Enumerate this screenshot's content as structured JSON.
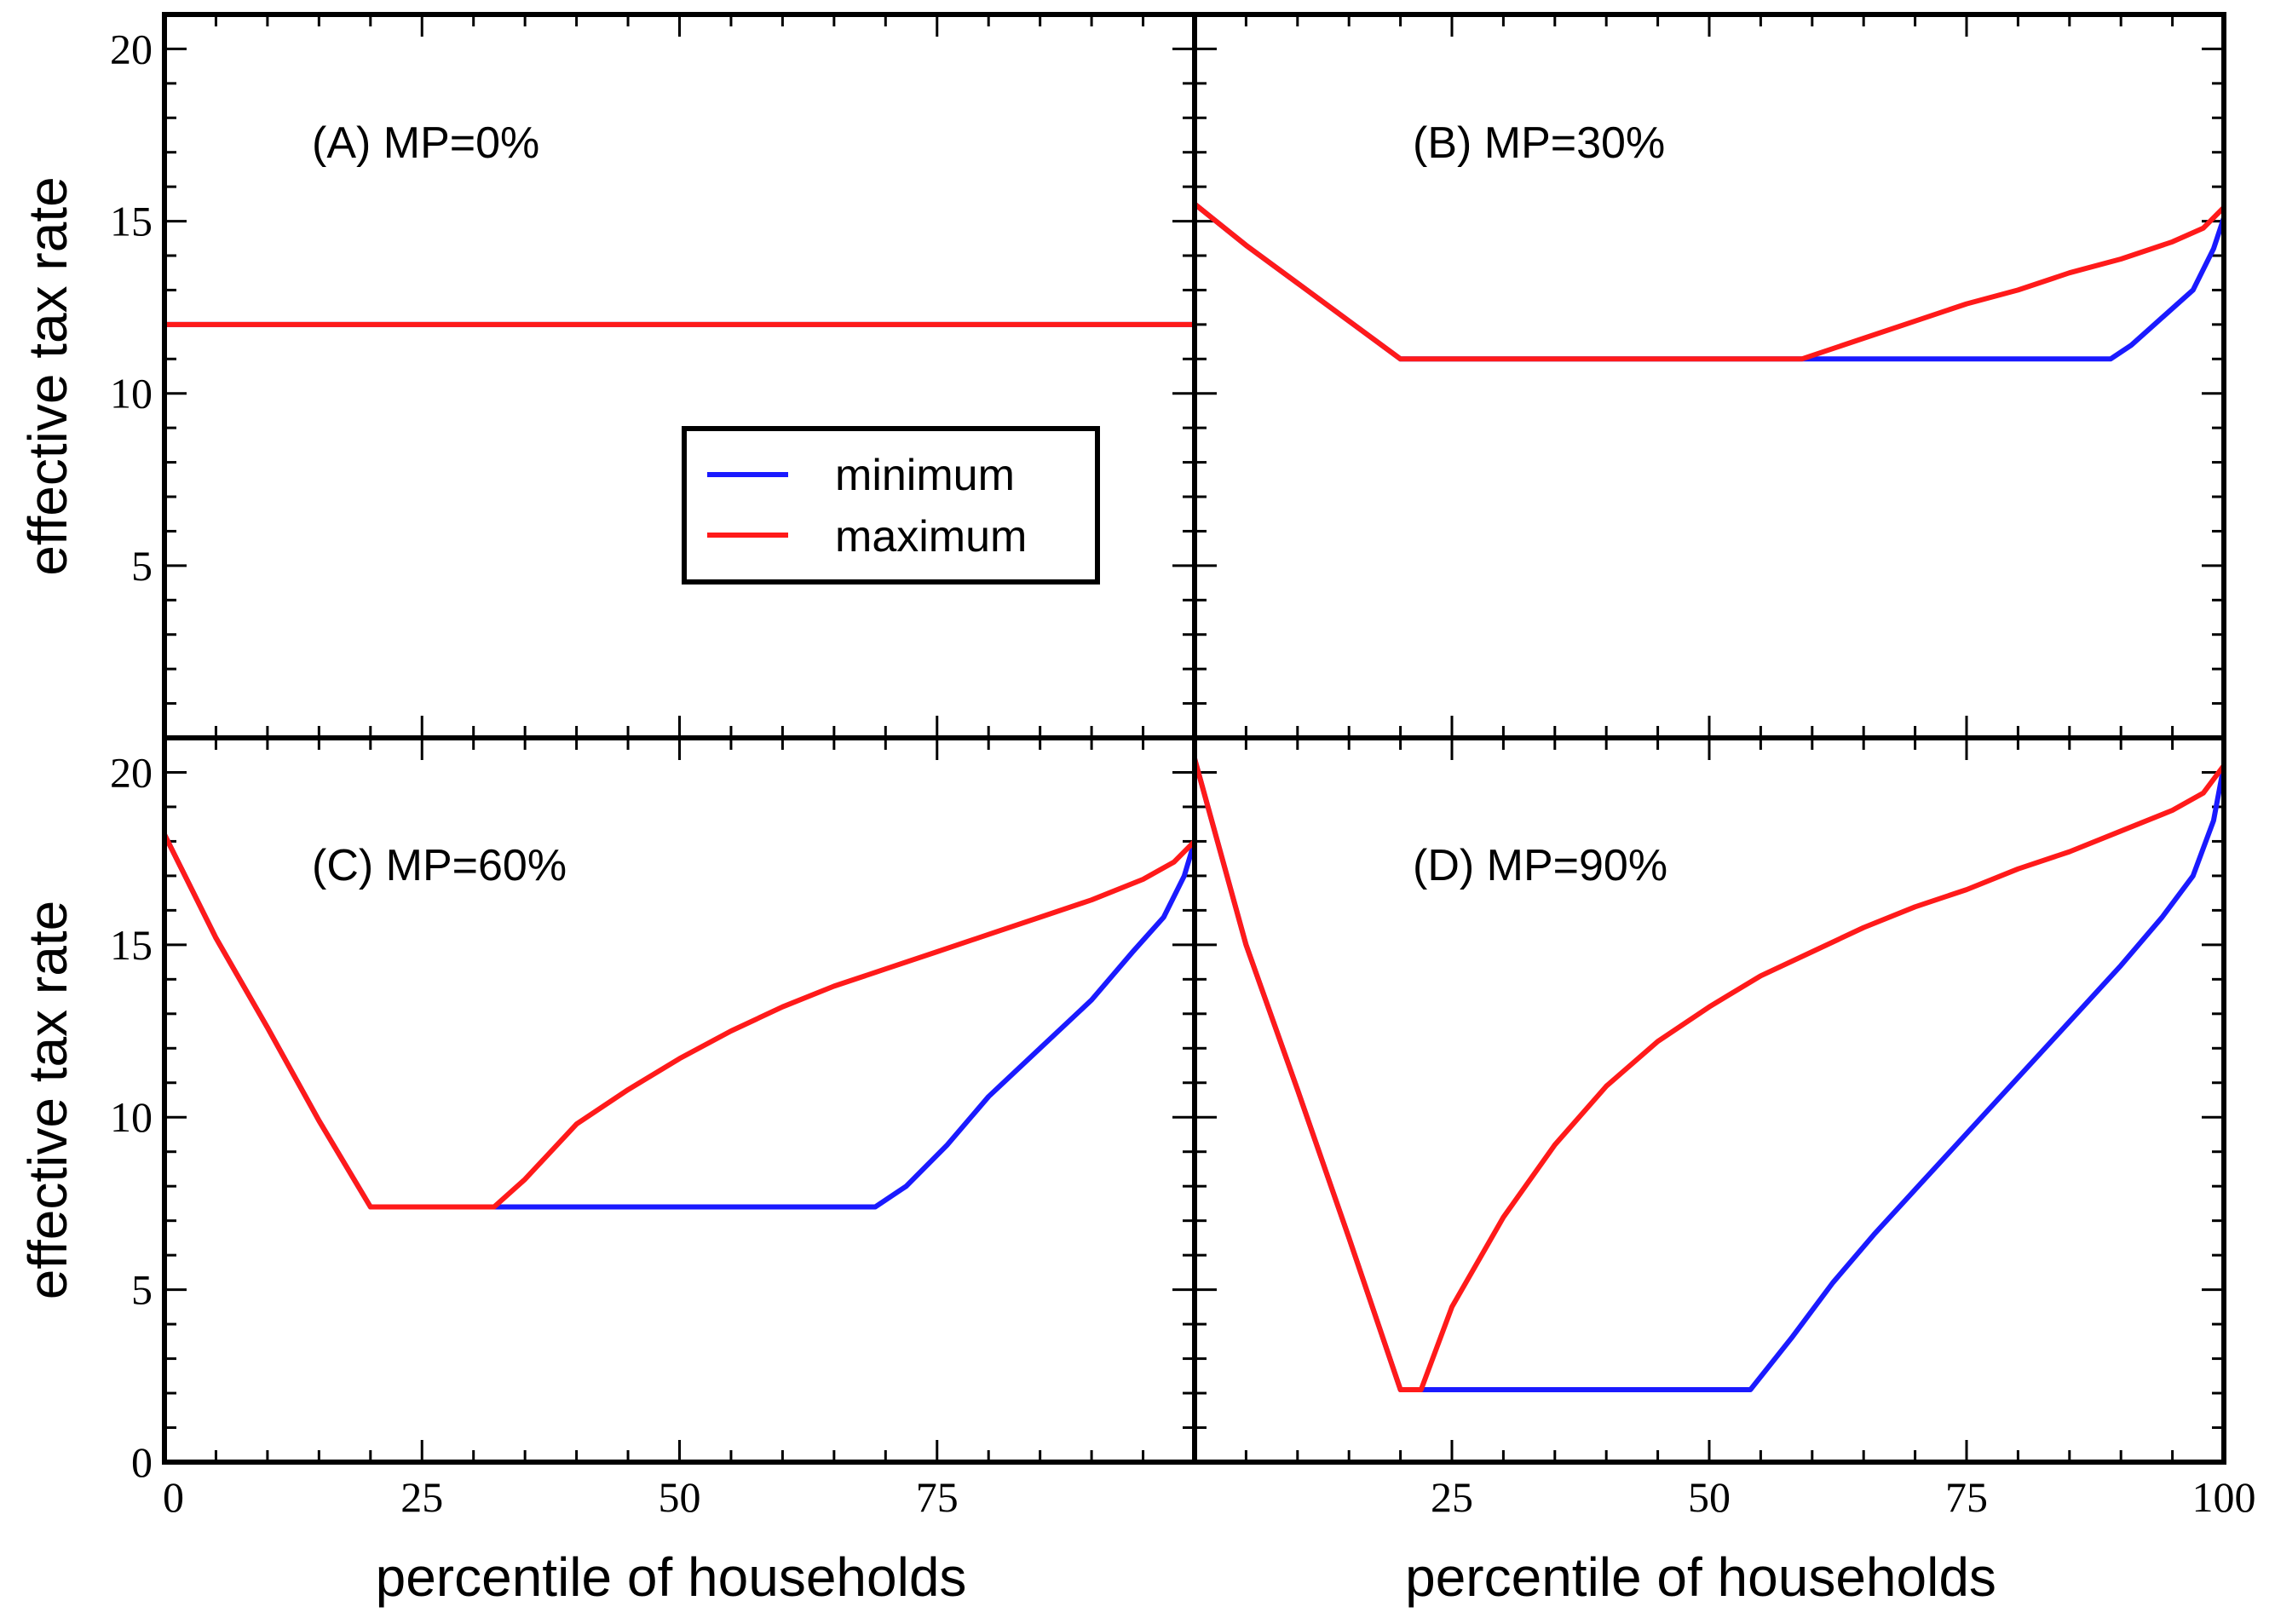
{
  "chart_data": {
    "type": "line",
    "layout": "2x2 panels sharing axes",
    "ylabel": "effective tax rate",
    "xlabel": "percentile of households",
    "xlim": [
      0,
      100
    ],
    "ylim": [
      0,
      21
    ],
    "colors": {
      "minimum": "#1a1aff",
      "maximum": "#ff1a1a"
    },
    "legend": {
      "placement": "panel A, right-center",
      "entries": [
        {
          "name": "minimum",
          "color": "#1a1aff"
        },
        {
          "name": "maximum",
          "color": "#ff1a1a"
        }
      ]
    },
    "panels": [
      {
        "id": "A",
        "label": "(A) MP=0%",
        "yticks": [
          5,
          10,
          15,
          20
        ],
        "xticks": [],
        "series": [
          {
            "name": "minimum",
            "x": [
              0,
              100
            ],
            "y": [
              12,
              12
            ]
          },
          {
            "name": "maximum",
            "x": [
              0,
              100
            ],
            "y": [
              12,
              12
            ]
          }
        ]
      },
      {
        "id": "B",
        "label": "(B) MP=30%",
        "yticks": [],
        "xticks": [],
        "series": [
          {
            "name": "minimum",
            "x": [
              0,
              5,
              10,
              15,
              20,
              40,
              60,
              80,
              89,
              91,
              94,
              97,
              99,
              100
            ],
            "y": [
              15.5,
              14.3,
              13.2,
              12.1,
              11.0,
              11.0,
              11.0,
              11.0,
              11.0,
              11.4,
              12.2,
              13.0,
              14.2,
              15.1
            ]
          },
          {
            "name": "maximum",
            "x": [
              0,
              5,
              10,
              15,
              20,
              40,
              59,
              65,
              70,
              75,
              80,
              85,
              90,
              95,
              98,
              100
            ],
            "y": [
              15.5,
              14.3,
              13.2,
              12.1,
              11.0,
              11.0,
              11.0,
              11.6,
              12.1,
              12.6,
              13.0,
              13.5,
              13.9,
              14.4,
              14.8,
              15.4
            ]
          }
        ]
      },
      {
        "id": "C",
        "label": "(C) MP=60%",
        "yticks": [
          0,
          5,
          10,
          15,
          20
        ],
        "xticks": [
          0,
          25,
          50,
          75
        ],
        "series": [
          {
            "name": "minimum",
            "x": [
              0,
              5,
              10,
              15,
              20,
              33,
              50,
              69,
              72,
              76,
              80,
              85,
              90,
              94,
              97,
              99,
              100
            ],
            "y": [
              18.2,
              15.2,
              12.6,
              9.9,
              7.4,
              7.4,
              7.4,
              7.4,
              8.0,
              9.2,
              10.6,
              12.0,
              13.4,
              14.8,
              15.8,
              17.0,
              18.0
            ]
          },
          {
            "name": "maximum",
            "x": [
              0,
              5,
              10,
              15,
              20,
              25,
              32,
              35,
              40,
              45,
              50,
              55,
              60,
              65,
              70,
              75,
              80,
              85,
              90,
              95,
              98,
              100
            ],
            "y": [
              18.2,
              15.2,
              12.6,
              9.9,
              7.4,
              7.4,
              7.4,
              8.2,
              9.8,
              10.8,
              11.7,
              12.5,
              13.2,
              13.8,
              14.3,
              14.8,
              15.3,
              15.8,
              16.3,
              16.9,
              17.4,
              18.0
            ]
          }
        ]
      },
      {
        "id": "D",
        "label": "(D) MP=90%",
        "yticks": [],
        "xticks": [
          25,
          50,
          75,
          100
        ],
        "series": [
          {
            "name": "minimum",
            "x": [
              0,
              5,
              10,
              15,
              20,
              22,
              30,
              40,
              54,
              58,
              62,
              66,
              70,
              74,
              78,
              82,
              86,
              90,
              94,
              97,
              99,
              100
            ],
            "y": [
              20.4,
              15.0,
              10.8,
              6.5,
              2.1,
              2.1,
              2.1,
              2.1,
              2.1,
              3.6,
              5.2,
              6.6,
              7.9,
              9.2,
              10.5,
              11.8,
              13.1,
              14.4,
              15.8,
              17.0,
              18.6,
              20.2
            ]
          },
          {
            "name": "maximum",
            "x": [
              0,
              5,
              10,
              15,
              20,
              22,
              25,
              30,
              35,
              40,
              45,
              50,
              55,
              60,
              65,
              70,
              75,
              80,
              85,
              90,
              95,
              98,
              100
            ],
            "y": [
              20.4,
              15.0,
              10.8,
              6.5,
              2.1,
              2.1,
              4.5,
              7.1,
              9.2,
              10.9,
              12.2,
              13.2,
              14.1,
              14.8,
              15.5,
              16.1,
              16.6,
              17.2,
              17.7,
              18.3,
              18.9,
              19.4,
              20.2
            ]
          }
        ]
      }
    ]
  }
}
